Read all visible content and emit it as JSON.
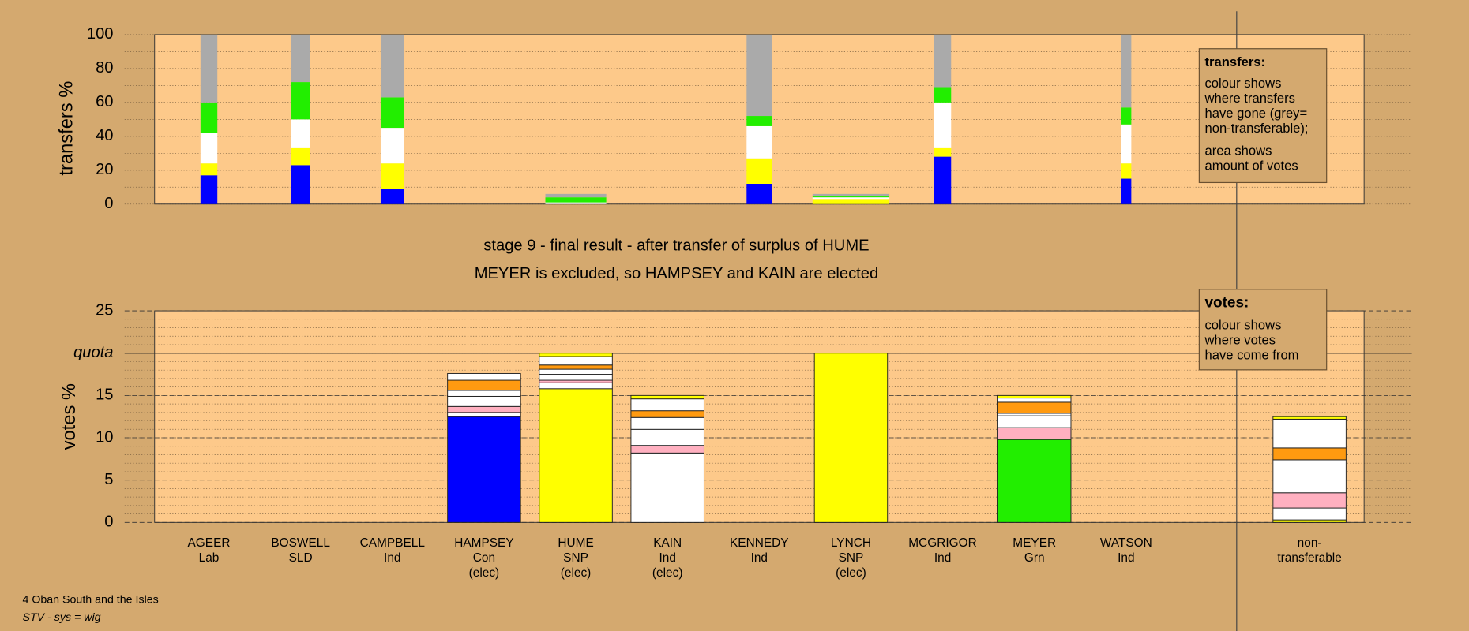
{
  "chart_data": [
    {
      "type": "stacked-bar",
      "ylabel": "transfers %",
      "ylim": [
        0,
        100
      ],
      "yticks": [
        0,
        20,
        40,
        60,
        80,
        100
      ],
      "minor_grid_step": 10,
      "widths": [
        18,
        20,
        25,
        null,
        65,
        null,
        27,
        82,
        18,
        null,
        11,
        null
      ],
      "series": [
        {
          "color": "#0000ff",
          "values": [
            17,
            23,
            9,
            null,
            0,
            null,
            12,
            0,
            28,
            null,
            15,
            null
          ]
        },
        {
          "color": "#ffff00",
          "values": [
            7,
            10,
            15,
            null,
            0,
            null,
            15,
            3,
            5,
            null,
            9,
            null
          ]
        },
        {
          "color": "#ffffff",
          "values": [
            18,
            17,
            21,
            null,
            1,
            null,
            19,
            1,
            27,
            null,
            23,
            null
          ]
        },
        {
          "color": "#22ee00",
          "values": [
            18,
            22,
            18,
            null,
            3,
            null,
            6,
            1,
            9,
            null,
            10,
            null
          ]
        },
        {
          "color": "#aaaaaa",
          "values": [
            40,
            28,
            37,
            null,
            2,
            null,
            48,
            1,
            31,
            null,
            43,
            null
          ]
        }
      ],
      "note": {
        "title": "transfers:",
        "paragraphs": [
          [
            "colour shows",
            "where transfers",
            "have gone (grey=",
            "non-transferable);"
          ],
          [
            "area shows",
            "amount of votes"
          ]
        ]
      }
    },
    {
      "type": "stacked-bar",
      "title": "stage 9 - final result - after transfer of surplus of HUME",
      "subtitle": "MEYER is excluded, so HAMPSEY and KAIN are elected",
      "ylabel": "votes %",
      "ylim": [
        0,
        25
      ],
      "yticks": [
        0,
        5,
        10,
        15,
        {
          "value": 20,
          "label": "quota"
        },
        25
      ],
      "minor_grid_step": 1,
      "categories": [
        "AGEER",
        "BOSWELL",
        "CAMPBELL",
        "HAMPSEY",
        "HUME",
        "KAIN",
        "KENNEDY",
        "LYNCH",
        "MCGRIGOR",
        "MEYER",
        "WATSON",
        "non-transferable"
      ],
      "parties": [
        "Lab",
        "SLD",
        "Ind",
        "Con",
        "SNP",
        "Ind",
        "Ind",
        "SNP",
        "Ind",
        "Grn",
        "Ind",
        null
      ],
      "status": [
        null,
        null,
        null,
        "(elec)",
        "(elec)",
        "(elec)",
        null,
        "(elec)",
        null,
        null,
        null,
        null
      ],
      "series": [
        {
          "color": "#0000ff",
          "values": [
            null,
            null,
            null,
            12.5,
            null,
            null,
            null,
            null,
            null,
            null,
            null,
            null
          ]
        },
        {
          "color": "#ffff00",
          "values": [
            null,
            null,
            null,
            null,
            15.8,
            null,
            null,
            20,
            null,
            null,
            null,
            0.3
          ]
        },
        {
          "color": "#22ee00",
          "values": [
            null,
            null,
            null,
            null,
            null,
            null,
            null,
            null,
            null,
            9.8,
            null,
            null
          ]
        },
        {
          "color": "#ffffff",
          "values": [
            null,
            null,
            null,
            0.5,
            0.7,
            8.2,
            null,
            null,
            null,
            null,
            null,
            1.4
          ]
        },
        {
          "color": "#ffb0c0",
          "values": [
            null,
            null,
            null,
            0.7,
            0.3,
            0.9,
            null,
            null,
            null,
            1.4,
            null,
            1.8
          ]
        },
        {
          "color": "#ffffff",
          "values": [
            null,
            null,
            null,
            1.2,
            0.7,
            1.9,
            null,
            null,
            null,
            1.4,
            null,
            3.9
          ]
        },
        {
          "color": "#ffffff",
          "values": [
            null,
            null,
            null,
            0.7,
            0.6,
            1.4,
            null,
            null,
            null,
            0.3,
            null,
            null
          ]
        },
        {
          "color": "#ff9a10",
          "values": [
            null,
            null,
            null,
            1.2,
            0.5,
            0.8,
            null,
            null,
            null,
            1.3,
            null,
            1.4
          ]
        },
        {
          "color": "#ffffff",
          "values": [
            null,
            null,
            null,
            0.8,
            1.0,
            1.4,
            null,
            null,
            null,
            0.5,
            null,
            3.4
          ]
        },
        {
          "color": "#ffff00",
          "values": [
            null,
            null,
            null,
            null,
            0.4,
            0.4,
            null,
            null,
            null,
            0.3,
            null,
            0.3
          ]
        }
      ],
      "note": {
        "title": "votes:",
        "paragraphs": [
          [
            "colour shows",
            "where votes",
            "have come from"
          ]
        ]
      }
    }
  ],
  "footer": [
    "4 Oban South and the Isles",
    "STV - sys = wig"
  ]
}
